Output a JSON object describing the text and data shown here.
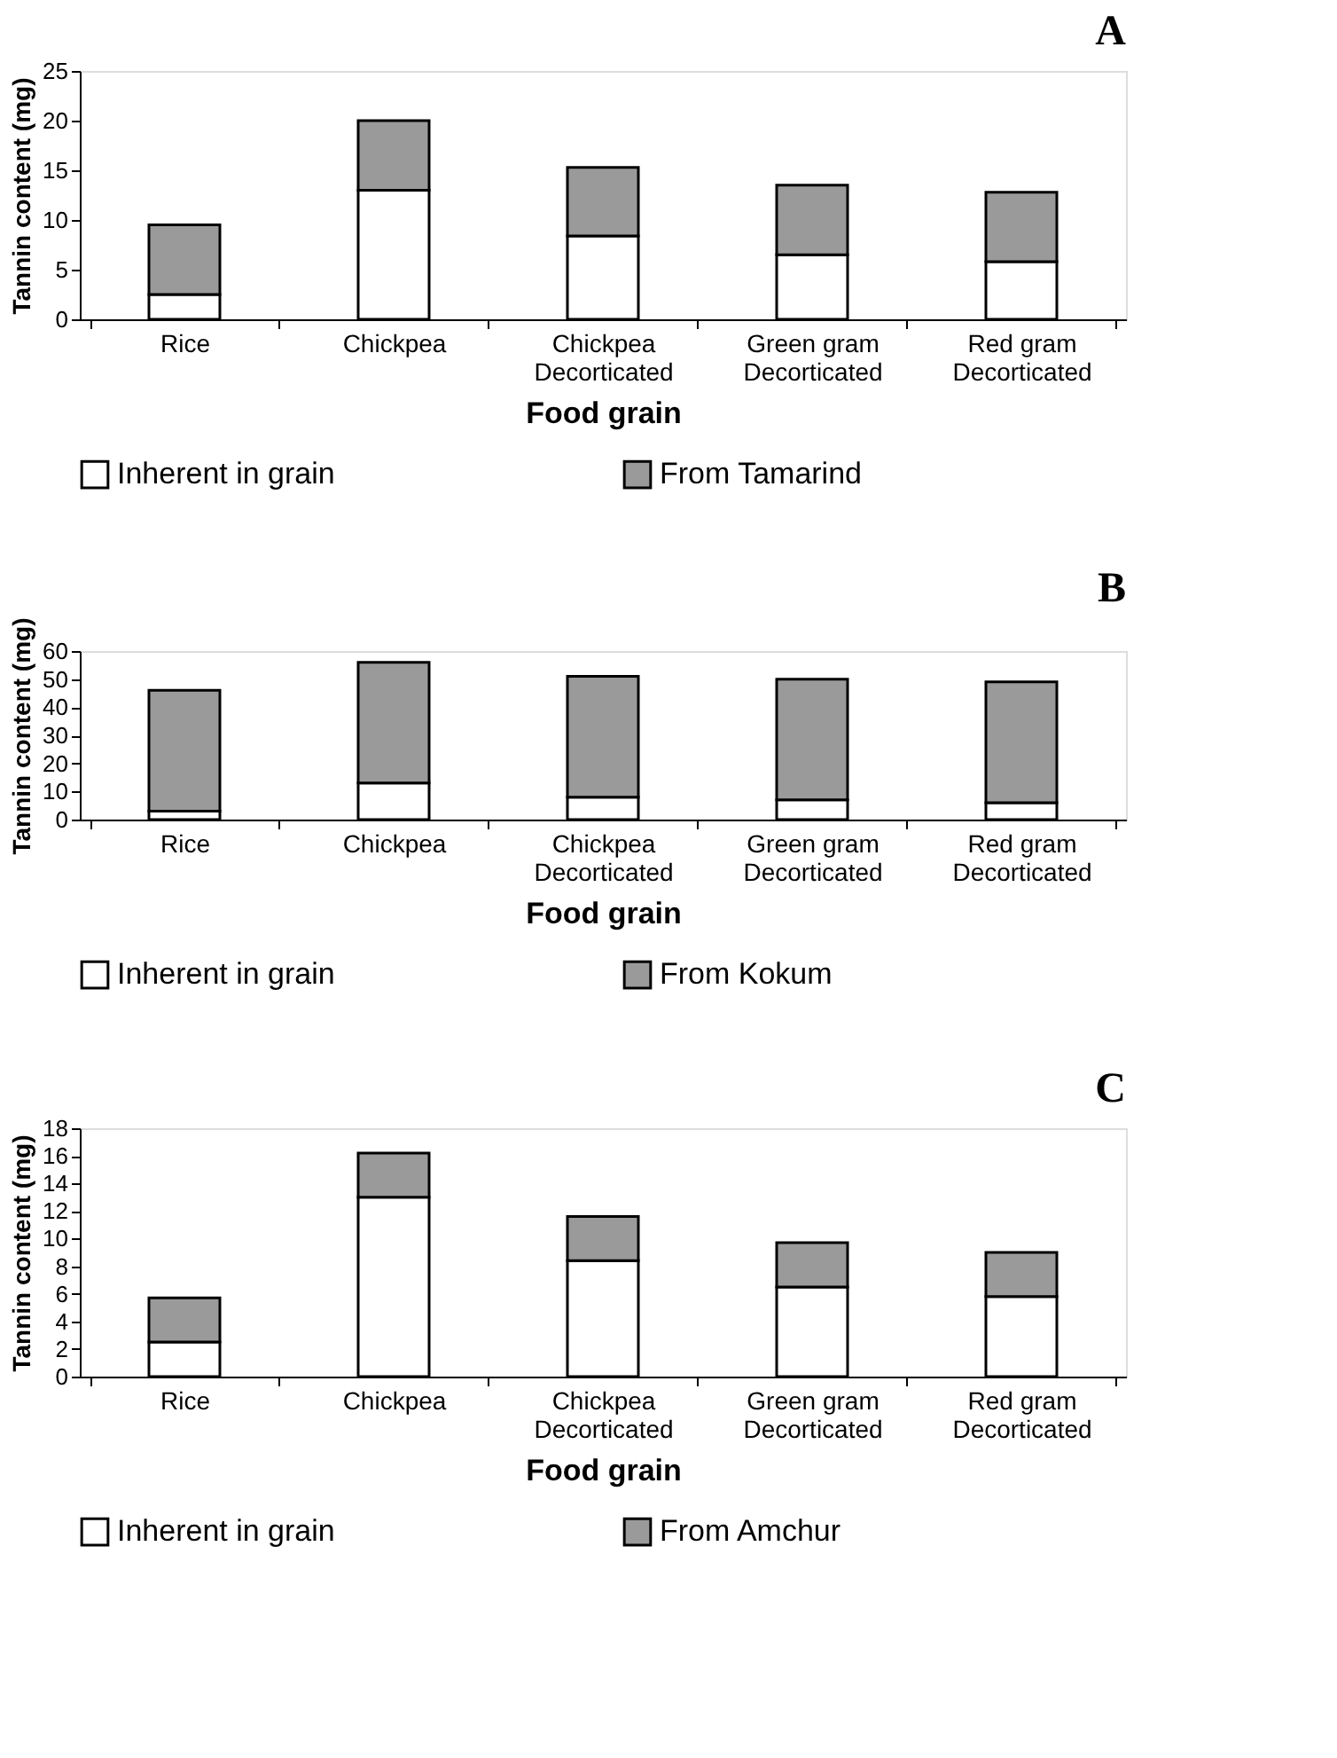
{
  "chart_data": [
    {
      "type": "bar",
      "title": "A",
      "xlabel": "Food grain",
      "ylabel": "Tannin content (mg)",
      "stacked": true,
      "legend": "bottom",
      "grid": false,
      "categories": [
        "Rice",
        "Chickpea",
        "Chickpea\nDecorticated",
        "Green gram\nDecorticated",
        "Red gram\nDecorticated"
      ],
      "ylim": [
        0,
        25
      ],
      "yticks": [
        0,
        5,
        10,
        15,
        20,
        25
      ],
      "series": [
        {
          "name": "Inherent in grain",
          "color": "#ffffff",
          "values": [
            2.5,
            13,
            8.4,
            6.5,
            5.8
          ]
        },
        {
          "name": "From Tamarind",
          "color": "#9a9a9a",
          "values": [
            7,
            7,
            6.9,
            7,
            7
          ]
        }
      ]
    },
    {
      "type": "bar",
      "title": "B",
      "xlabel": "Food grain",
      "ylabel": "Tannin content (mg)",
      "stacked": true,
      "legend": "bottom",
      "grid": false,
      "categories": [
        "Rice",
        "Chickpea",
        "Chickpea\nDecorticated",
        "Green gram\nDecorticated",
        "Red gram\nDecorticated"
      ],
      "ylim": [
        0,
        60
      ],
      "yticks": [
        0,
        10,
        20,
        30,
        40,
        50,
        60
      ],
      "series": [
        {
          "name": "Inherent in grain",
          "color": "#ffffff",
          "values": [
            3,
            13,
            8,
            7,
            6
          ]
        },
        {
          "name": "From Kokum",
          "color": "#9a9a9a",
          "values": [
            43,
            43,
            43,
            43,
            43
          ]
        }
      ]
    },
    {
      "type": "bar",
      "title": "C",
      "xlabel": "Food grain",
      "ylabel": "Tannin content (mg)",
      "stacked": true,
      "legend": "bottom",
      "grid": false,
      "categories": [
        "Rice",
        "Chickpea",
        "Chickpea\nDecorticated",
        "Green gram\nDecorticated",
        "Red gram\nDecorticated"
      ],
      "ylim": [
        0,
        18
      ],
      "yticks": [
        0,
        2,
        4,
        6,
        8,
        10,
        12,
        14,
        16,
        18
      ],
      "series": [
        {
          "name": "Inherent in grain",
          "color": "#ffffff",
          "values": [
            2.5,
            13,
            8.4,
            6.5,
            5.8
          ]
        },
        {
          "name": "From Amchur",
          "color": "#9a9a9a",
          "values": [
            3.2,
            3.2,
            3.2,
            3.2,
            3.2
          ]
        }
      ]
    }
  ]
}
